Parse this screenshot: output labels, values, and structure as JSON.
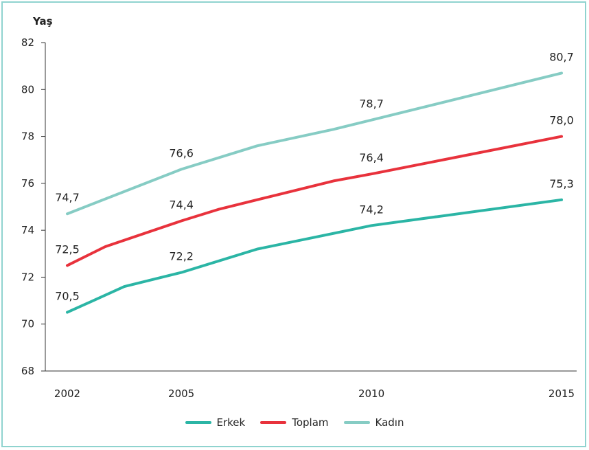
{
  "chart_data": {
    "type": "line",
    "ylabel": "Yaş",
    "x": [
      "2002",
      "2005",
      "2010",
      "2015"
    ],
    "x_values": [
      2002,
      2005,
      2010,
      2015
    ],
    "ylim": [
      68,
      82
    ],
    "yticks": [
      "68",
      "70",
      "72",
      "74",
      "76",
      "78",
      "80",
      "82"
    ],
    "grid": false,
    "legend_position": "bottom",
    "series": [
      {
        "name": "Erkek",
        "color": "#2bb5a5",
        "points": [
          [
            2002,
            70.5
          ],
          [
            2003.5,
            71.6
          ],
          [
            2005,
            72.2
          ],
          [
            2007,
            73.2
          ],
          [
            2008.5,
            73.7
          ],
          [
            2010,
            74.2
          ],
          [
            2015,
            75.3
          ]
        ],
        "labels": [
          {
            "x": 2002,
            "y": 70.5,
            "text": "70,5"
          },
          {
            "x": 2005,
            "y": 72.2,
            "text": "72,2"
          },
          {
            "x": 2010,
            "y": 74.2,
            "text": "74,2"
          },
          {
            "x": 2015,
            "y": 75.3,
            "text": "75,3"
          }
        ]
      },
      {
        "name": "Toplam",
        "color": "#e8323c",
        "points": [
          [
            2002,
            72.5
          ],
          [
            2003,
            73.3
          ],
          [
            2005,
            74.4
          ],
          [
            2006,
            74.9
          ],
          [
            2007.5,
            75.5
          ],
          [
            2009,
            76.1
          ],
          [
            2010,
            76.4
          ],
          [
            2015,
            78.0
          ]
        ],
        "labels": [
          {
            "x": 2002,
            "y": 72.5,
            "text": "72,5"
          },
          {
            "x": 2005,
            "y": 74.4,
            "text": "74,4"
          },
          {
            "x": 2010,
            "y": 76.4,
            "text": "76,4"
          },
          {
            "x": 2015,
            "y": 78.0,
            "text": "78,0"
          }
        ]
      },
      {
        "name": "Kadın",
        "color": "#86ccc4",
        "points": [
          [
            2002,
            74.7
          ],
          [
            2005,
            76.6
          ],
          [
            2007,
            77.6
          ],
          [
            2009,
            78.3
          ],
          [
            2010,
            78.7
          ],
          [
            2015,
            80.7
          ]
        ],
        "labels": [
          {
            "x": 2002,
            "y": 74.7,
            "text": "74,7"
          },
          {
            "x": 2005,
            "y": 76.6,
            "text": "76,6"
          },
          {
            "x": 2010,
            "y": 78.7,
            "text": "78,7"
          },
          {
            "x": 2015,
            "y": 80.7,
            "text": "80,7"
          }
        ]
      }
    ]
  }
}
